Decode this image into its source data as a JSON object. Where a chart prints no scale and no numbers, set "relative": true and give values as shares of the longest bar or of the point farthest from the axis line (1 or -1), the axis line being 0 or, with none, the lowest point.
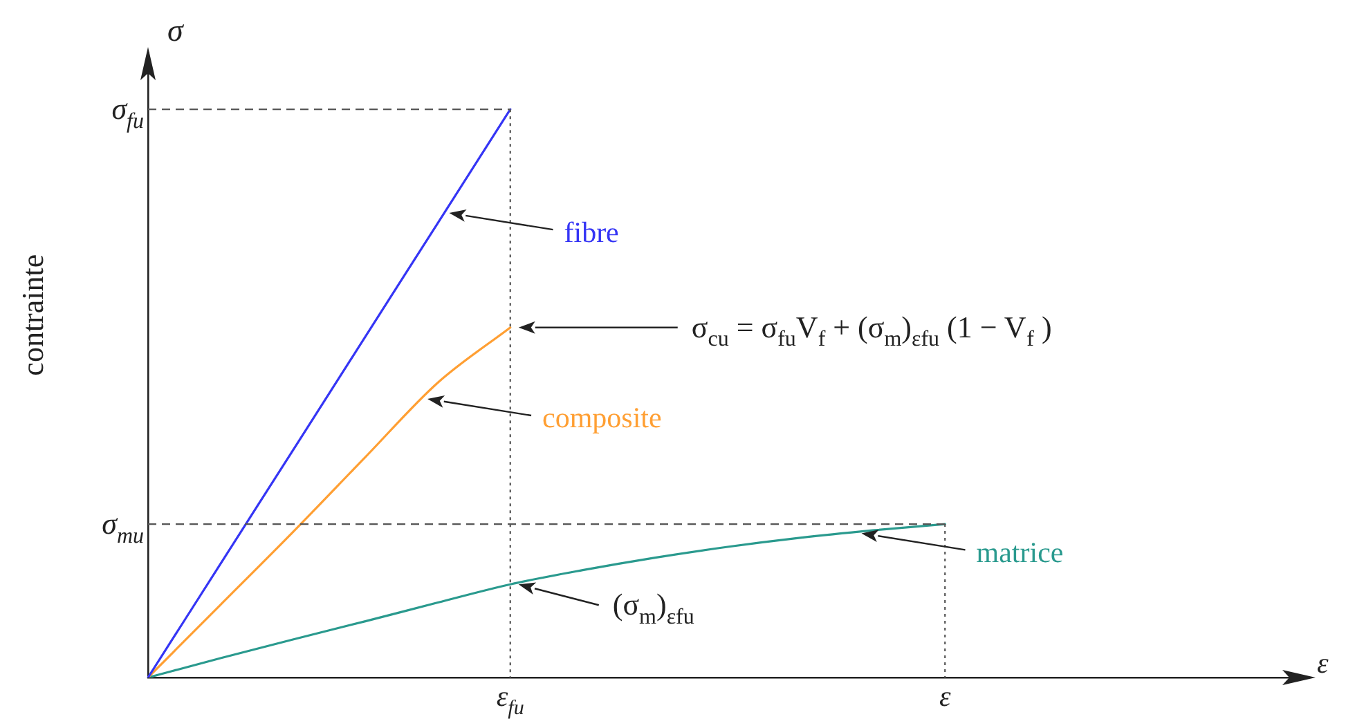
{
  "chart_data": {
    "type": "line",
    "ylabel": "contrainte",
    "xlabel": "ε",
    "relative": true,
    "categories": [
      null,
      null,
      null,
      null,
      null,
      "ε$_{fu}$",
      null,
      null,
      null,
      null,
      null,
      "ε",
      null,
      null,
      null,
      null,
      null
    ],
    "series": [
      {
        "name": "fibre",
        "color": "#3535f5",
        "values": [
          0,
          0.2,
          0.4,
          0.6,
          0.8,
          1,
          null,
          null,
          null,
          null,
          null,
          null,
          null,
          null,
          null,
          null,
          null
        ]
      },
      {
        "name": "composite",
        "color": "#ff9f33",
        "values": [
          0,
          0.128,
          0.256,
          0.388,
          0.519,
          0.616,
          null,
          null,
          null,
          null,
          null,
          null,
          null,
          null,
          null,
          null,
          null
        ]
      },
      {
        "name": "matrice",
        "color": "#2a9a8e",
        "values": [
          0,
          0.034,
          0.067,
          0.099,
          0.132,
          0.164,
          0.189,
          0.211,
          0.23,
          0.246,
          0.259,
          0.27,
          null,
          null,
          null,
          null,
          null
        ]
      }
    ],
    "ref_lines": [
      {
        "axis": "y",
        "value": 1,
        "label": "σ$_{fu}$",
        "color": "#555555",
        "line_style": "dashed"
      },
      {
        "axis": "y",
        "value": 0.27,
        "label": "σ$_{mu}$",
        "color": "#555555",
        "line_style": "dashed"
      }
    ],
    "annotations": [
      "σ",
      "σ$_{cu}$ = σ$_{fu}$V$_{f}$ + (σ$_{m}$)$_{εfu}$ (1 − V$_{f}$ )",
      "(σ$_{m}$)$_{εfu}$"
    ]
  }
}
